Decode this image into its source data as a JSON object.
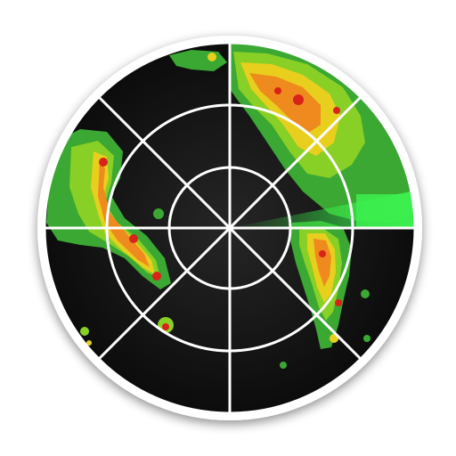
{
  "icon": {
    "name": "weather-radar-icon",
    "colors": {
      "background": "#ffffff",
      "rim": "#ffffff",
      "screen": "#141414",
      "grid": "#ffffff",
      "echo_light": "#3fb93a",
      "echo_mid": "#7ed321",
      "echo_yellow": "#f3d21b",
      "echo_orange": "#f08a1c",
      "echo_red": "#d8221a",
      "sweep": "#39e64a"
    }
  }
}
